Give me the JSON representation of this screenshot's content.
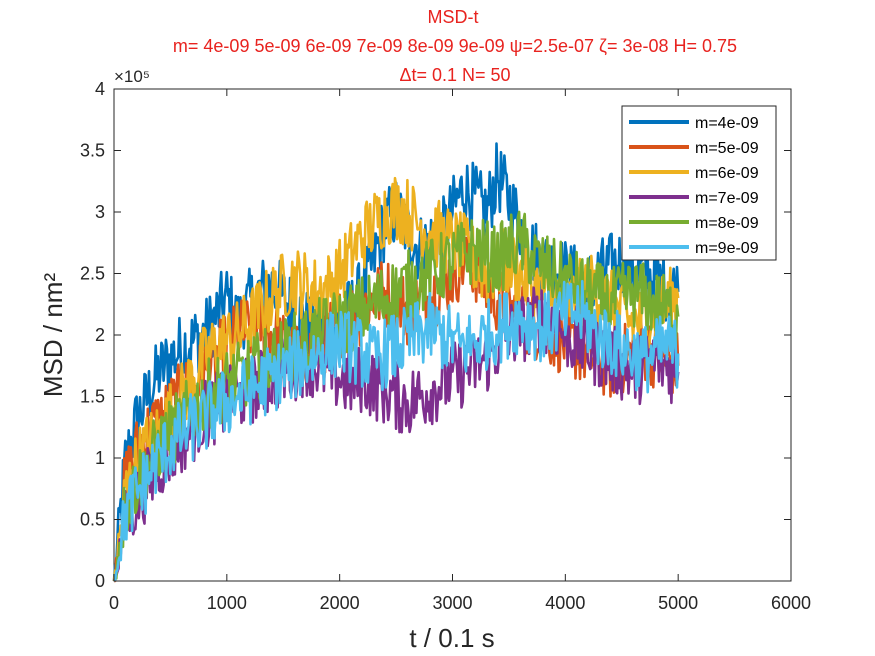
{
  "chart_data": {
    "type": "line",
    "title": "MSD-t",
    "title_lines": [
      "MSD-t",
      "m= 4e-09 5e-09 6e-09 7e-09 8e-09 9e-09 ψ=2.5e-07 ζ= 3e-08 H= 0.75",
      "Δt= 0.1 N= 50"
    ],
    "title_color": "#e8231f",
    "xlabel": "t / 0.1 s",
    "ylabel": "MSD / nm²",
    "y_exponent_label": "×10⁵",
    "xlim": [
      0,
      6000
    ],
    "ylim": [
      0,
      400000
    ],
    "xticks": [
      0,
      1000,
      2000,
      3000,
      4000,
      5000,
      6000
    ],
    "xtick_labels": [
      "0",
      "1000",
      "2000",
      "3000",
      "4000",
      "5000",
      "6000"
    ],
    "yticks": [
      0,
      50000,
      100000,
      150000,
      200000,
      250000,
      300000,
      350000,
      400000
    ],
    "ytick_labels": [
      "0",
      "0.5",
      "1",
      "1.5",
      "2",
      "2.5",
      "3",
      "3.5",
      "4"
    ],
    "grid": false,
    "legend_position": "top-right",
    "x": [
      0,
      100,
      200,
      300,
      400,
      500,
      600,
      700,
      800,
      900,
      1000,
      1100,
      1200,
      1300,
      1400,
      1500,
      1600,
      1700,
      1800,
      1900,
      2000,
      2100,
      2200,
      2300,
      2400,
      2500,
      2600,
      2700,
      2800,
      2900,
      3000,
      3100,
      3200,
      3300,
      3400,
      3500,
      3600,
      3700,
      3800,
      3900,
      4000,
      4100,
      4200,
      4300,
      4400,
      4500,
      4600,
      4700,
      4800,
      4900,
      5000
    ],
    "series": [
      {
        "name": "m=4e-09",
        "color": "#0072bd",
        "values": [
          0,
          95000,
          130000,
          150000,
          170000,
          180000,
          190000,
          195000,
          200000,
          215000,
          230000,
          210000,
          225000,
          235000,
          240000,
          230000,
          220000,
          210000,
          205000,
          200000,
          210000,
          220000,
          235000,
          260000,
          290000,
          300000,
          285000,
          270000,
          275000,
          280000,
          300000,
          320000,
          310000,
          300000,
          330000,
          310000,
          290000,
          270000,
          260000,
          255000,
          250000,
          245000,
          240000,
          250000,
          255000,
          260000,
          255000,
          250000,
          245000,
          240000,
          235000
        ]
      },
      {
        "name": "m=5e-09",
        "color": "#d95319",
        "values": [
          0,
          80000,
          105000,
          120000,
          130000,
          140000,
          150000,
          160000,
          170000,
          180000,
          190000,
          200000,
          205000,
          210000,
          200000,
          190000,
          185000,
          180000,
          190000,
          200000,
          210000,
          215000,
          220000,
          230000,
          235000,
          230000,
          220000,
          225000,
          230000,
          240000,
          250000,
          260000,
          255000,
          240000,
          230000,
          220000,
          215000,
          210000,
          205000,
          200000,
          195000,
          190000,
          185000,
          180000,
          175000,
          180000,
          185000,
          190000,
          185000,
          180000,
          175000
        ]
      },
      {
        "name": "m=6e-09",
        "color": "#edb120",
        "values": [
          0,
          70000,
          95000,
          110000,
          120000,
          135000,
          150000,
          165000,
          180000,
          190000,
          195000,
          200000,
          210000,
          220000,
          230000,
          240000,
          245000,
          240000,
          235000,
          240000,
          250000,
          265000,
          280000,
          290000,
          300000,
          305000,
          300000,
          290000,
          285000,
          280000,
          275000,
          270000,
          260000,
          250000,
          255000,
          260000,
          250000,
          240000,
          235000,
          230000,
          225000,
          230000,
          240000,
          235000,
          225000,
          215000,
          210000,
          215000,
          220000,
          225000,
          230000
        ]
      },
      {
        "name": "m=7e-09",
        "color": "#7e2f8e",
        "values": [
          0,
          50000,
          65000,
          80000,
          95000,
          105000,
          115000,
          125000,
          135000,
          140000,
          145000,
          150000,
          155000,
          160000,
          165000,
          170000,
          175000,
          180000,
          175000,
          170000,
          165000,
          160000,
          165000,
          160000,
          155000,
          150000,
          145000,
          150000,
          155000,
          160000,
          165000,
          170000,
          175000,
          180000,
          190000,
          200000,
          205000,
          210000,
          215000,
          210000,
          200000,
          195000,
          190000,
          185000,
          180000,
          175000,
          170000,
          175000,
          180000,
          175000,
          170000
        ]
      },
      {
        "name": "m=8e-09",
        "color": "#77ac30",
        "values": [
          0,
          60000,
          80000,
          95000,
          110000,
          120000,
          130000,
          140000,
          150000,
          155000,
          160000,
          165000,
          170000,
          175000,
          180000,
          185000,
          190000,
          195000,
          200000,
          205000,
          210000,
          215000,
          220000,
          225000,
          230000,
          235000,
          240000,
          245000,
          250000,
          255000,
          260000,
          265000,
          270000,
          265000,
          260000,
          270000,
          275000,
          265000,
          255000,
          250000,
          245000,
          240000,
          235000,
          230000,
          225000,
          230000,
          235000,
          230000,
          225000,
          220000,
          215000
        ]
      },
      {
        "name": "m=9e-09",
        "color": "#4dbeee",
        "values": [
          0,
          55000,
          70000,
          85000,
          100000,
          110000,
          120000,
          125000,
          130000,
          140000,
          145000,
          150000,
          155000,
          160000,
          165000,
          170000,
          175000,
          180000,
          185000,
          190000,
          195000,
          190000,
          185000,
          180000,
          185000,
          190000,
          195000,
          200000,
          205000,
          200000,
          195000,
          190000,
          195000,
          200000,
          205000,
          210000,
          215000,
          210000,
          205000,
          210000,
          215000,
          220000,
          210000,
          200000,
          195000,
          190000,
          185000,
          180000,
          185000,
          190000,
          185000
        ]
      }
    ]
  }
}
